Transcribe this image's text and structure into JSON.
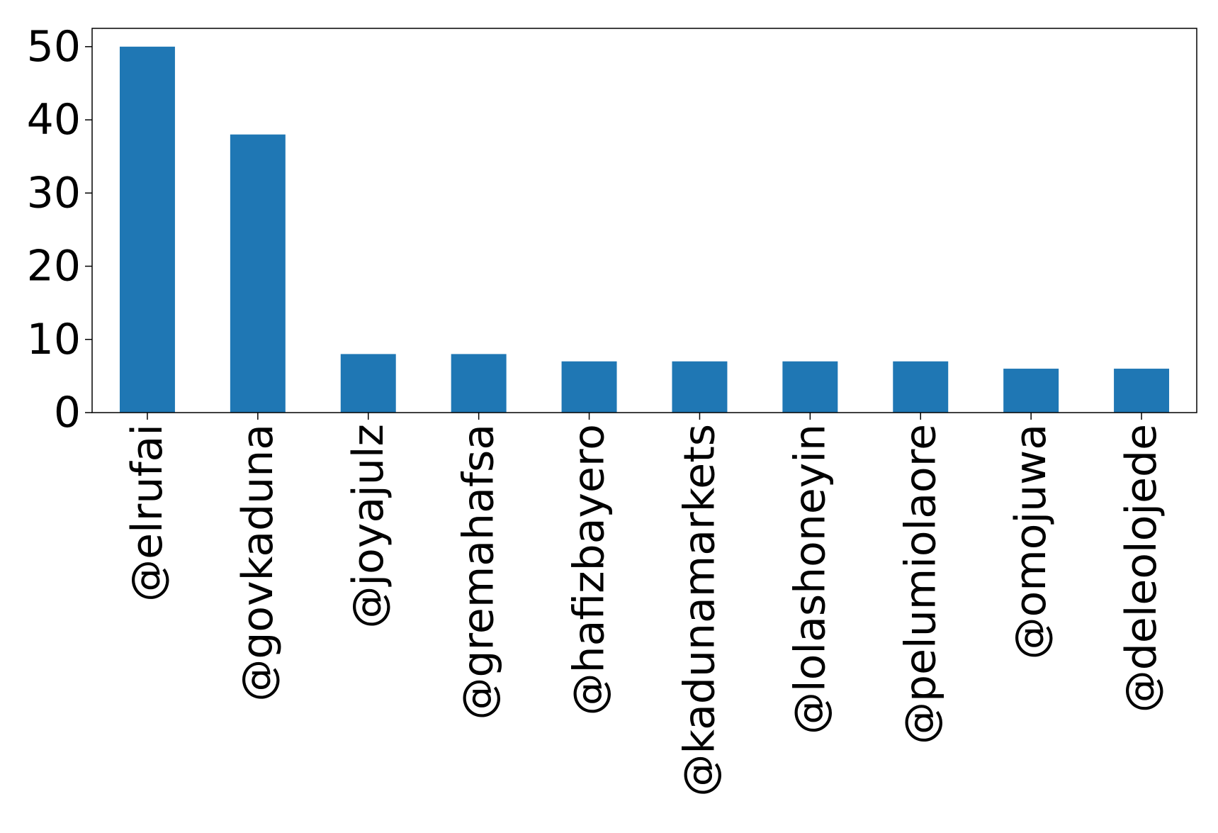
{
  "chart_data": {
    "type": "bar",
    "categories": [
      "@elrufai",
      "@govkaduna",
      "@joyajulz",
      "@gremahafsa",
      "@hafizbayero",
      "@kadunamarkets",
      "@lolashoneyin",
      "@pelumiolaore",
      "@omojuwa",
      "@deleolojede"
    ],
    "values": [
      50,
      38,
      8,
      8,
      7,
      7,
      7,
      7,
      6,
      6
    ],
    "ylim": [
      0,
      52.5
    ],
    "yticks": [
      0,
      10,
      20,
      30,
      40,
      50
    ],
    "title": "",
    "xlabel": "",
    "ylabel": "",
    "grid": false,
    "legend": "none",
    "bar_color": "#1f77b4",
    "axis_color": "#000000"
  }
}
